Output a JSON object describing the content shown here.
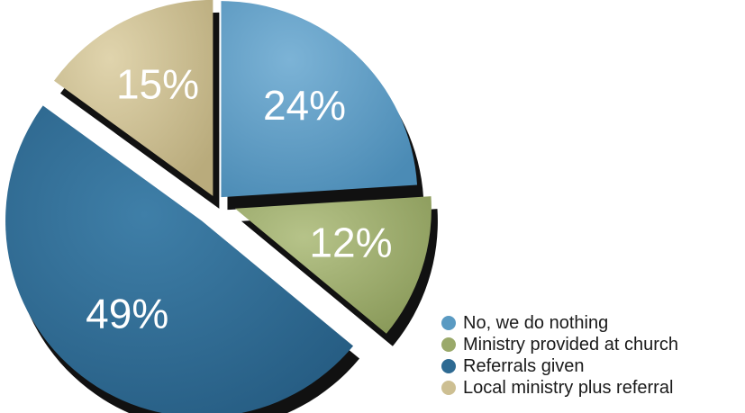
{
  "chart_data": {
    "type": "pie",
    "title": "",
    "slices": [
      {
        "label": "No, we do nothing",
        "value": 24,
        "display": "24%",
        "color": "#5a9ac2"
      },
      {
        "label": "Ministry provided at church",
        "value": 12,
        "display": "12%",
        "color": "#9aa96a"
      },
      {
        "label": "Referrals given",
        "value": 49,
        "display": "49%",
        "color": "#2e6a92"
      },
      {
        "label": "Local ministry plus referral",
        "value": 15,
        "display": "15%",
        "color": "#cdbf92"
      }
    ],
    "legend_position": "bottom-right",
    "exploded": true,
    "style": "3d"
  }
}
